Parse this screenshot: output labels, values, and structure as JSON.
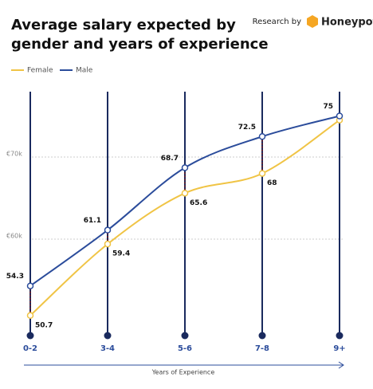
{
  "chart_data": {
    "type": "line",
    "title_lines": [
      "Average salary expected by",
      "gender and years of experience"
    ],
    "brand": {
      "prefix": "Research by",
      "name": "Honeypot"
    },
    "categories": [
      "0-2",
      "3-4",
      "5-6",
      "7-8",
      "9+"
    ],
    "series": [
      {
        "name": "Female",
        "color": "#f0c445",
        "values": [
          50.7,
          59.4,
          65.6,
          68,
          74.5
        ],
        "labels_shown": [
          true,
          true,
          true,
          true,
          false
        ]
      },
      {
        "name": "Male",
        "color": "#2b4c9b",
        "values": [
          54.3,
          61.1,
          68.7,
          72.5,
          75
        ],
        "labels_shown": [
          true,
          true,
          true,
          true,
          true
        ]
      }
    ],
    "ylim": [
      48,
      78
    ],
    "yticks": [
      {
        "value": 60,
        "label": "€60k"
      },
      {
        "value": 70,
        "label": "€70k"
      }
    ],
    "grid": true,
    "xlabel": "Years of Experience"
  }
}
